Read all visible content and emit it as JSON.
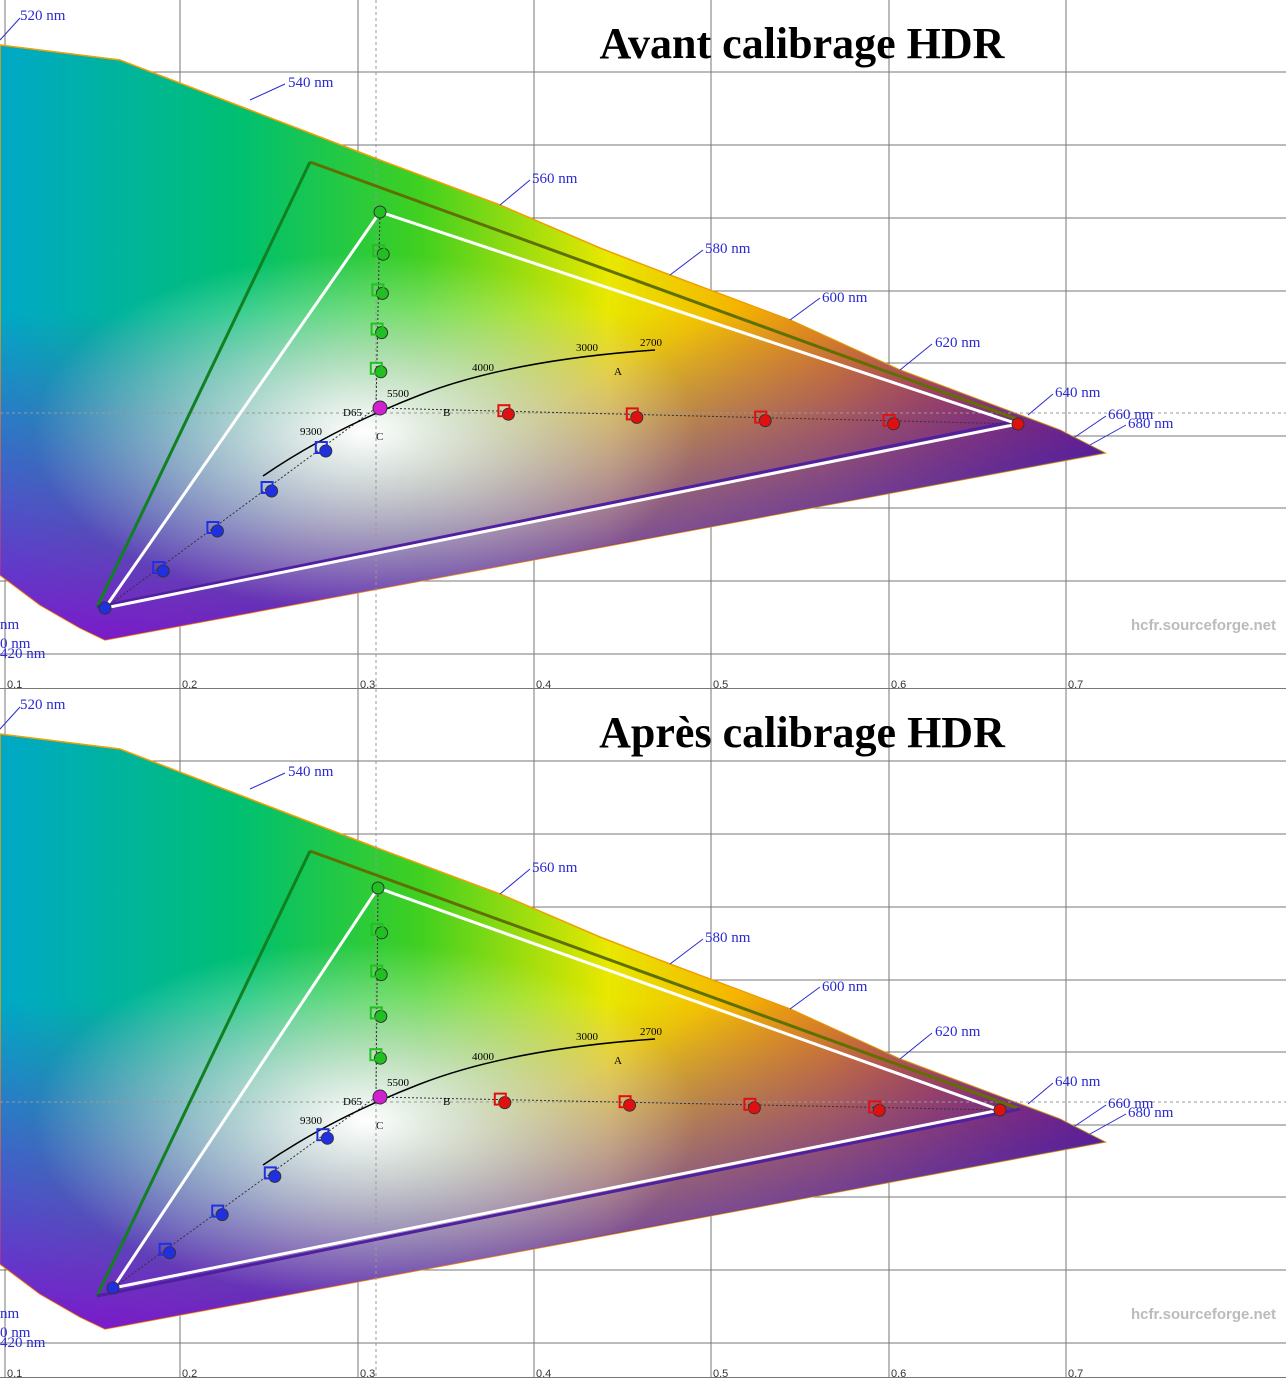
{
  "panels": [
    {
      "title": "Avant calibrage HDR",
      "wavelengths": [
        "520 nm",
        "540 nm",
        "560 nm",
        "580 nm",
        "600 nm",
        "620 nm",
        "640 nm",
        "660 nm",
        "680 nm",
        "nm",
        "0 nm",
        "420 nm"
      ],
      "temperatures": [
        "2700",
        "3000",
        "4000",
        "5500",
        "9300"
      ],
      "illuminants": [
        "D65",
        "A",
        "B",
        "C"
      ],
      "x_ticks": [
        "0.1",
        "0.2",
        "0.3",
        "0.4",
        "0.5",
        "0.6",
        "0.7"
      ],
      "watermark": "hcfr.sourceforge.net"
    },
    {
      "title": "Après calibrage HDR",
      "wavelengths": [
        "520 nm",
        "540 nm",
        "560 nm",
        "580 nm",
        "600 nm",
        "620 nm",
        "640 nm",
        "660 nm",
        "680 nm",
        "nm",
        "0 nm",
        "420 nm"
      ],
      "temperatures": [
        "2700",
        "3000",
        "4000",
        "5500",
        "9300"
      ],
      "illuminants": [
        "D65",
        "A",
        "B",
        "C"
      ],
      "x_ticks": [
        "0.1",
        "0.2",
        "0.3",
        "0.4",
        "0.5",
        "0.6",
        "0.7"
      ],
      "watermark": "hcfr.sourceforge.net"
    }
  ]
}
